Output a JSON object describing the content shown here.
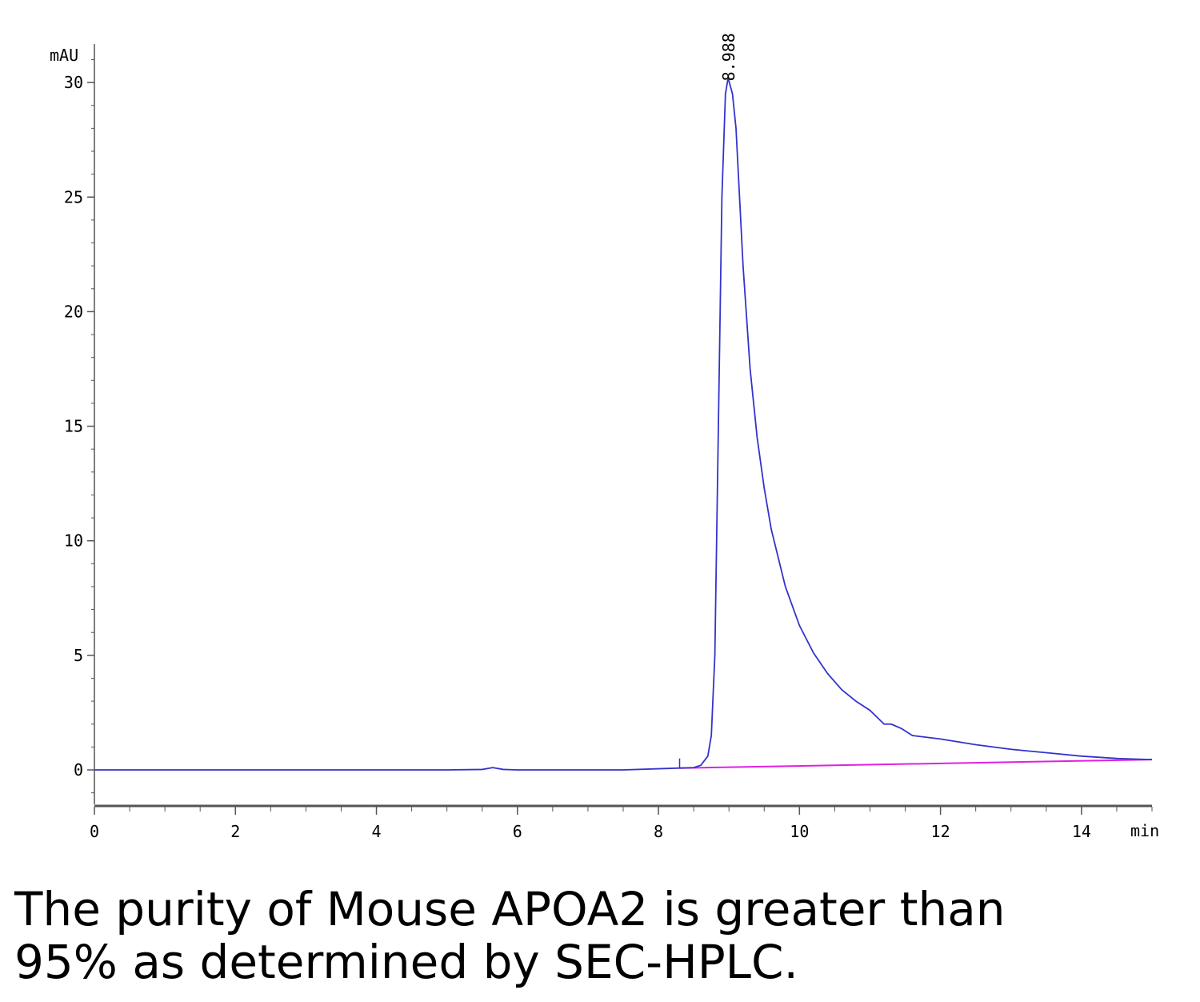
{
  "chart_data": {
    "type": "line",
    "title": "",
    "xlabel": "min",
    "ylabel": "mAU",
    "xlim": [
      0,
      15
    ],
    "ylim": [
      -1.5,
      32
    ],
    "x_ticks": [
      0,
      2,
      4,
      6,
      8,
      10,
      12,
      14
    ],
    "y_ticks": [
      0,
      5,
      10,
      15,
      20,
      25,
      30
    ],
    "peak_annotation": {
      "label": "8.988",
      "x": 8.988,
      "y": 30.2
    },
    "colors": {
      "trace": "#3333cc",
      "baseline": "#e020e0",
      "axis": "#555555"
    },
    "series": [
      {
        "x": [
          0,
          1,
          2,
          3,
          4,
          5,
          5.5,
          5.65,
          5.8,
          6,
          7,
          7.5,
          8,
          8.3,
          8.5,
          8.6,
          8.7,
          8.75,
          8.8,
          8.85,
          8.9,
          8.95,
          8.988,
          9.05,
          9.1,
          9.2,
          9.3,
          9.4,
          9.5,
          9.6,
          9.8,
          10,
          10.2,
          10.4,
          10.6,
          10.8,
          11,
          11.1,
          11.2,
          11.3,
          11.45,
          11.6,
          12,
          12.5,
          13,
          13.5,
          14,
          14.5,
          15
        ],
        "y": [
          0,
          0,
          0,
          0,
          0,
          0,
          0.02,
          0.1,
          0.02,
          0,
          0,
          0,
          0.05,
          0.08,
          0.1,
          0.2,
          0.6,
          1.5,
          5,
          15,
          25,
          29.5,
          30.2,
          29.5,
          28,
          22,
          17.5,
          14.5,
          12.3,
          10.5,
          8,
          6.3,
          5.1,
          4.2,
          3.5,
          3,
          2.6,
          2.3,
          2,
          2,
          1.8,
          1.5,
          1.35,
          1.1,
          0.9,
          0.75,
          0.6,
          0.5,
          0.45
        ]
      },
      {
        "x": [
          8.3,
          15
        ],
        "y": [
          0.08,
          0.45
        ]
      }
    ]
  },
  "caption": {
    "line1": "The purity of Mouse APOA2 is greater than",
    "line2": "95% as determined by SEC-HPLC."
  }
}
